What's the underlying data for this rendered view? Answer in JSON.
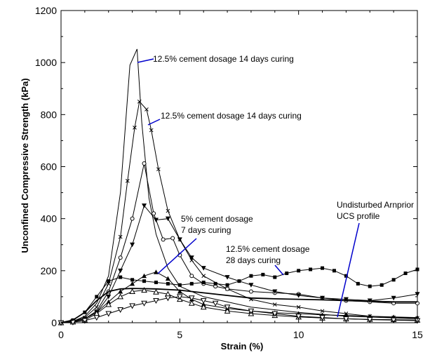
{
  "chart_data": {
    "type": "line",
    "xlabel": "Strain (%)",
    "ylabel": "Unconfined Compressive Strength (kPa)",
    "xlim": [
      0,
      15
    ],
    "ylim": [
      0,
      1200
    ],
    "xticks": [
      0,
      5,
      10,
      15
    ],
    "yticks": [
      0,
      200,
      400,
      600,
      800,
      1000,
      1200
    ],
    "grid": false,
    "legend": "none",
    "series": [
      {
        "marker": "none",
        "points": [
          [
            0,
            0
          ],
          [
            0.5,
            5
          ],
          [
            1,
            25
          ],
          [
            1.5,
            75
          ],
          [
            2,
            180
          ],
          [
            2.5,
            500
          ],
          [
            2.9,
            990
          ],
          [
            3.2,
            1052
          ],
          [
            3.4,
            770
          ],
          [
            3.7,
            480
          ],
          [
            4,
            340
          ],
          [
            4.5,
            210
          ],
          [
            5,
            140
          ],
          [
            6,
            100
          ],
          [
            8,
            60
          ],
          [
            10,
            40
          ],
          [
            12,
            25
          ],
          [
            15,
            15
          ]
        ]
      },
      {
        "marker": "x",
        "points": [
          [
            0,
            0
          ],
          [
            0.5,
            5
          ],
          [
            1,
            20
          ],
          [
            1.5,
            60
          ],
          [
            2,
            150
          ],
          [
            2.5,
            330
          ],
          [
            2.8,
            545
          ],
          [
            3.1,
            750
          ],
          [
            3.3,
            850
          ],
          [
            3.6,
            820
          ],
          [
            3.8,
            740
          ],
          [
            4.1,
            590
          ],
          [
            4.5,
            430
          ],
          [
            5,
            320
          ],
          [
            5.5,
            240
          ],
          [
            6,
            180
          ],
          [
            7,
            130
          ],
          [
            8,
            90
          ],
          [
            9,
            70
          ],
          [
            10,
            60
          ],
          [
            11,
            45
          ],
          [
            12,
            35
          ],
          [
            13,
            25
          ],
          [
            14,
            20
          ],
          [
            15,
            18
          ]
        ]
      },
      {
        "marker": "circle",
        "points": [
          [
            0,
            0
          ],
          [
            0.5,
            5
          ],
          [
            1,
            15
          ],
          [
            1.5,
            45
          ],
          [
            2,
            120
          ],
          [
            2.5,
            250
          ],
          [
            3,
            400
          ],
          [
            3.5,
            612
          ],
          [
            3.9,
            420
          ],
          [
            4.3,
            320
          ],
          [
            4.7,
            325
          ],
          [
            5,
            260
          ],
          [
            5.5,
            180
          ],
          [
            6,
            150
          ],
          [
            6.5,
            140
          ],
          [
            7,
            130
          ],
          [
            8,
            120
          ],
          [
            9,
            115
          ],
          [
            10,
            110
          ],
          [
            11,
            95
          ],
          [
            12,
            85
          ],
          [
            13,
            80
          ],
          [
            14,
            75
          ],
          [
            15,
            75
          ]
        ]
      },
      {
        "marker": "triangle-down-filled",
        "points": [
          [
            0,
            0
          ],
          [
            0.5,
            5
          ],
          [
            1,
            15
          ],
          [
            1.5,
            40
          ],
          [
            2,
            100
          ],
          [
            2.5,
            200
          ],
          [
            3,
            300
          ],
          [
            3.5,
            450
          ],
          [
            4,
            395
          ],
          [
            4.5,
            400
          ],
          [
            5,
            320
          ],
          [
            5.5,
            250
          ],
          [
            6,
            210
          ],
          [
            7,
            175
          ],
          [
            8,
            145
          ],
          [
            9,
            120
          ],
          [
            10,
            105
          ],
          [
            11,
            95
          ],
          [
            12,
            90
          ],
          [
            13,
            85
          ],
          [
            14,
            95
          ],
          [
            15,
            110
          ]
        ]
      },
      {
        "marker": "square-filled",
        "points": [
          [
            0,
            0
          ],
          [
            0.5,
            10
          ],
          [
            1,
            40
          ],
          [
            1.5,
            100
          ],
          [
            2,
            160
          ],
          [
            2.5,
            175
          ],
          [
            3,
            165
          ],
          [
            3.5,
            160
          ],
          [
            4,
            155
          ],
          [
            4.5,
            150
          ],
          [
            5,
            145
          ],
          [
            5.5,
            150
          ],
          [
            6,
            155
          ],
          [
            6.5,
            150
          ],
          [
            7,
            145
          ],
          [
            7.5,
            160
          ],
          [
            8,
            180
          ],
          [
            8.5,
            185
          ],
          [
            9,
            175
          ],
          [
            9.5,
            190
          ],
          [
            10,
            200
          ],
          [
            10.5,
            205
          ],
          [
            11,
            210
          ],
          [
            11.5,
            200
          ],
          [
            12,
            180
          ],
          [
            12.5,
            150
          ],
          [
            13,
            140
          ],
          [
            13.5,
            145
          ],
          [
            14,
            165
          ],
          [
            14.5,
            190
          ],
          [
            15,
            205
          ]
        ]
      },
      {
        "marker": "triangle-up-filled",
        "points": [
          [
            0,
            0
          ],
          [
            0.5,
            5
          ],
          [
            1,
            15
          ],
          [
            1.5,
            40
          ],
          [
            2,
            80
          ],
          [
            2.5,
            120
          ],
          [
            3,
            150
          ],
          [
            3.5,
            180
          ],
          [
            4,
            195
          ],
          [
            4.5,
            170
          ],
          [
            5,
            120
          ],
          [
            5.5,
            90
          ],
          [
            6,
            70
          ],
          [
            7,
            55
          ],
          [
            8,
            45
          ],
          [
            9,
            38
          ],
          [
            10,
            35
          ],
          [
            11,
            30
          ],
          [
            12,
            28
          ],
          [
            13,
            25
          ],
          [
            14,
            22
          ],
          [
            15,
            20
          ]
        ]
      },
      {
        "marker": "triangle-up-open",
        "points": [
          [
            0,
            0
          ],
          [
            0.5,
            3
          ],
          [
            1,
            10
          ],
          [
            1.5,
            35
          ],
          [
            2,
            70
          ],
          [
            2.5,
            100
          ],
          [
            3,
            120
          ],
          [
            3.5,
            125
          ],
          [
            4,
            118
          ],
          [
            4.5,
            110
          ],
          [
            5,
            90
          ],
          [
            5.5,
            75
          ],
          [
            6,
            60
          ],
          [
            7,
            45
          ],
          [
            8,
            35
          ],
          [
            9,
            28
          ],
          [
            10,
            22
          ],
          [
            11,
            18
          ],
          [
            12,
            15
          ],
          [
            13,
            13
          ],
          [
            14,
            12
          ],
          [
            15,
            10
          ]
        ]
      },
      {
        "marker": "triangle-down-open",
        "points": [
          [
            0,
            0
          ],
          [
            0.5,
            2
          ],
          [
            1,
            8
          ],
          [
            1.5,
            20
          ],
          [
            2,
            35
          ],
          [
            2.5,
            50
          ],
          [
            3,
            65
          ],
          [
            3.5,
            75
          ],
          [
            4,
            85
          ],
          [
            4.5,
            95
          ],
          [
            5,
            100
          ],
          [
            5.5,
            95
          ],
          [
            6,
            85
          ],
          [
            6.5,
            75
          ],
          [
            7,
            60
          ],
          [
            8,
            45
          ],
          [
            9,
            35
          ],
          [
            10,
            25
          ],
          [
            11,
            20
          ],
          [
            12,
            15
          ],
          [
            13,
            12
          ],
          [
            14,
            10
          ],
          [
            15,
            8
          ]
        ]
      },
      {
        "marker": "none",
        "points": [
          [
            0,
            0
          ],
          [
            0.5,
            10
          ],
          [
            1,
            40
          ],
          [
            1.5,
            85
          ],
          [
            2,
            120
          ],
          [
            2.5,
            130
          ],
          [
            3,
            132
          ],
          [
            4,
            130
          ],
          [
            5,
            125
          ],
          [
            6,
            115
          ],
          [
            7,
            105
          ],
          [
            8,
            95
          ],
          [
            9,
            92
          ],
          [
            10,
            90
          ],
          [
            11,
            88
          ],
          [
            12,
            85
          ],
          [
            13,
            83
          ],
          [
            14,
            80
          ],
          [
            15,
            80
          ]
        ]
      }
    ],
    "annotations": [
      {
        "text": "12.5% cement dosage 14 days curing"
      },
      {
        "text": "12.5% cement dosage 14 days curing"
      },
      {
        "text": "5% cement dosage"
      },
      {
        "text": "7 days curing"
      },
      {
        "text": "12.5% cement dosage"
      },
      {
        "text": "28 days curing"
      },
      {
        "text": "Undisturbed Arnprior"
      },
      {
        "text": "UCS profile"
      }
    ],
    "arrow_color": "#0000cc"
  }
}
